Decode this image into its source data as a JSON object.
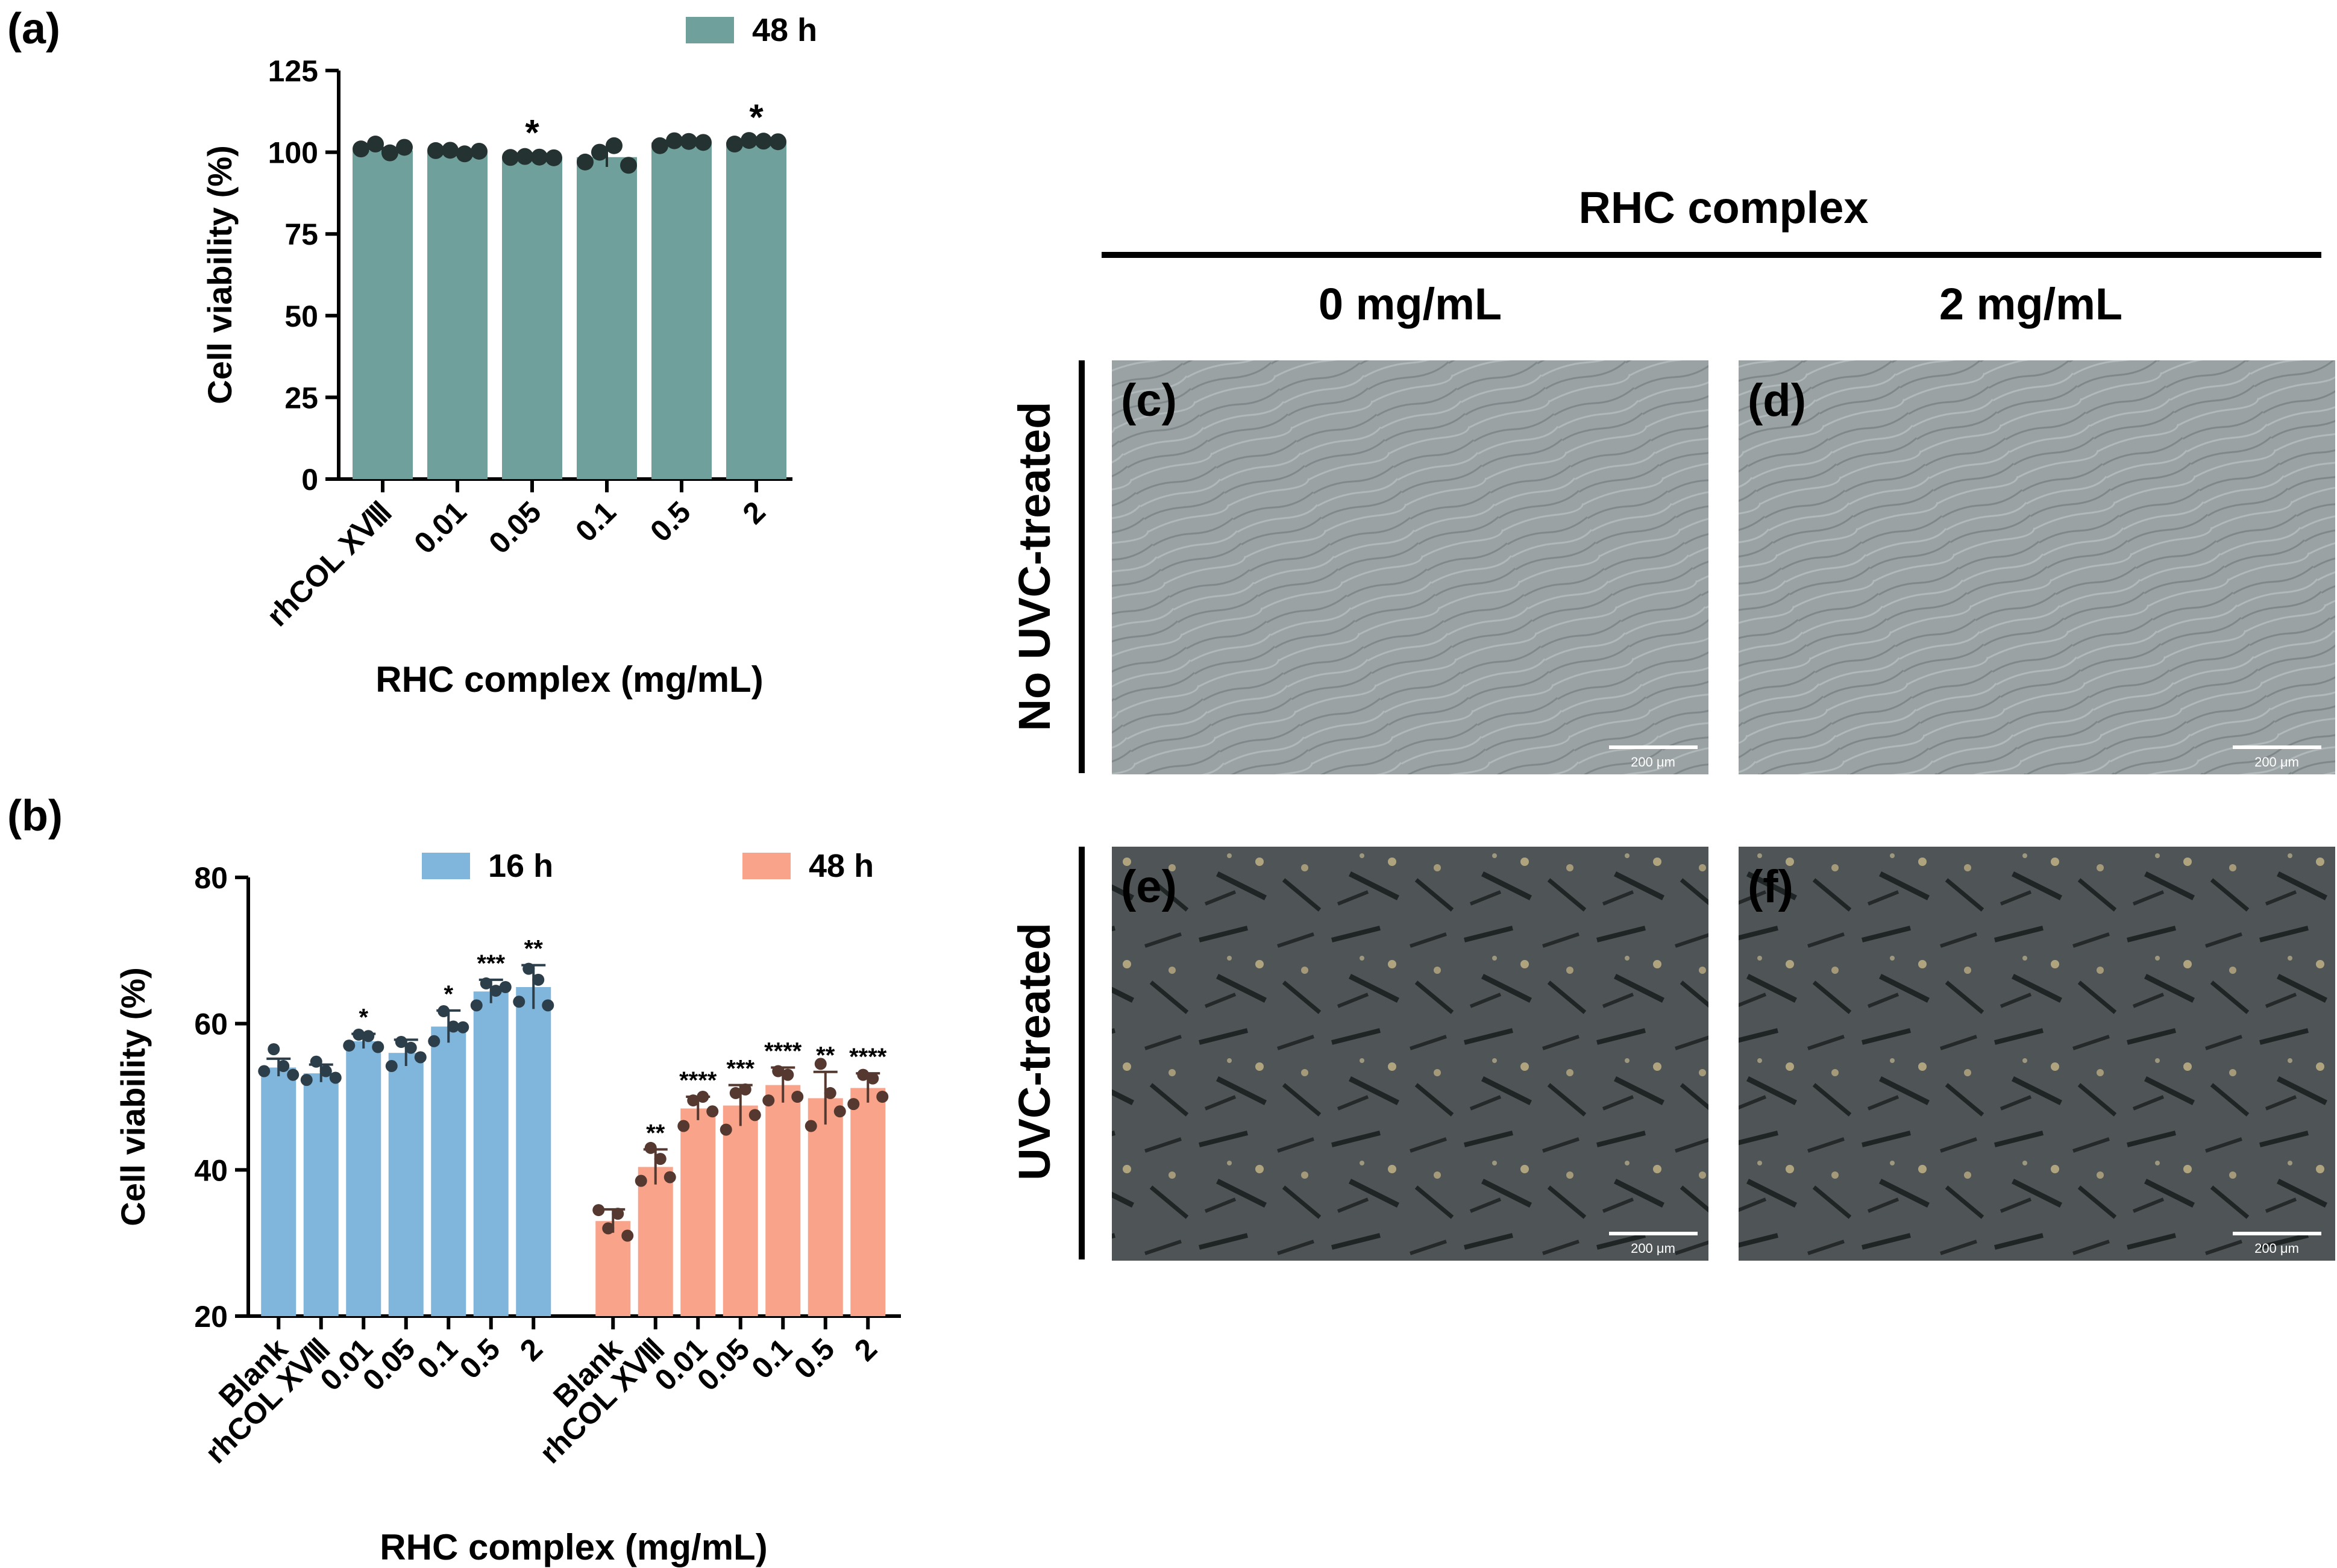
{
  "panels": {
    "a": "(a)",
    "b": "(b)",
    "c": "(c)",
    "d": "(d)",
    "e": "(e)",
    "f": "(f)"
  },
  "micrographs": {
    "header": "RHC complex",
    "col_labels": [
      "0 mg/mL",
      "2 mg/mL"
    ],
    "row_labels": [
      "No UVC-treated",
      "UVC-treated"
    ],
    "scale_bar": "200 μm",
    "colors": {
      "no_uvc_bg": "#9aa2a4",
      "uvc_bg": "#4f5556"
    }
  },
  "chart_data": [
    {
      "type": "bar",
      "panel": "a",
      "categories": [
        "rhCOL XⅧ",
        "0.01",
        "0.05",
        "0.1",
        "0.5",
        "2"
      ],
      "series": [
        {
          "name": "48 h",
          "color": "#6fa09c",
          "values": [
            100.5,
            100.2,
            98.5,
            98.5,
            103,
            103
          ],
          "errors": [
            0.8,
            0.4,
            0.4,
            3,
            0.6,
            0.6
          ],
          "points": [
            [
              101,
              102.5,
              99.8,
              101.5
            ],
            [
              100.5,
              100.6,
              99.5,
              100.3
            ],
            [
              98.4,
              98.7,
              98.5,
              98.3
            ],
            [
              97,
              100,
              102,
              96
            ],
            [
              102,
              103.5,
              103.3,
              103
            ],
            [
              102.5,
              103.6,
              103.4,
              103.2
            ]
          ],
          "significance": [
            "",
            "",
            "*",
            "",
            "",
            "*"
          ]
        }
      ],
      "xlabel": "RHC complex (mg/mL)",
      "ylabel": "Cell viability (%)",
      "ylim": [
        0,
        125
      ],
      "yticks": [
        "0",
        "25",
        "50",
        "75",
        "100",
        "125"
      ],
      "legend": "top"
    },
    {
      "type": "bar",
      "panel": "b",
      "categories": [
        "Blank",
        "rhCOL XⅧ",
        "0.01",
        "0.05",
        "0.1",
        "0.5",
        "2"
      ],
      "series": [
        {
          "name": "16 h",
          "color": "#80b6db",
          "values": [
            54,
            53.2,
            57.6,
            56,
            59.6,
            64.4,
            65
          ],
          "errors": [
            1.2,
            1.2,
            1,
            1.8,
            2.2,
            1.6,
            3
          ],
          "points": [
            [
              53.5,
              56.5,
              54.2,
              53
            ],
            [
              52.3,
              54.8,
              53.5,
              52.6
            ],
            [
              57,
              58.5,
              58.3,
              56.8
            ],
            [
              54.2,
              57.5,
              56.7,
              55.4
            ],
            [
              57.6,
              61.7,
              59.6,
              59.5
            ],
            [
              62.5,
              65.5,
              64.5,
              65
            ],
            [
              63,
              67.5,
              66,
              62.5
            ]
          ],
          "significance": [
            "",
            "",
            "*",
            "",
            "*",
            "***",
            "**"
          ]
        },
        {
          "name": "48 h",
          "color": "#f9a48a",
          "values": [
            33,
            40.4,
            48.4,
            48.8,
            51.6,
            49.8,
            51.2
          ],
          "errors": [
            1.6,
            2.4,
            1.6,
            2.8,
            2.4,
            3.6,
            2
          ],
          "points": [
            [
              34.5,
              32,
              34,
              31
            ],
            [
              38.5,
              43,
              41.5,
              39
            ],
            [
              46,
              49.5,
              50,
              48
            ],
            [
              45.5,
              50.5,
              51,
              47.5
            ],
            [
              49.5,
              53.5,
              53,
              50
            ],
            [
              46,
              54.5,
              50.5,
              48
            ],
            [
              49,
              53,
              52.5,
              50
            ]
          ],
          "significance": [
            "",
            "**",
            "****",
            "***",
            "****",
            "**",
            "****"
          ]
        }
      ],
      "xlabel": "RHC complex (mg/mL)",
      "ylabel": "Cell viability (%)",
      "ylim": [
        20,
        80
      ],
      "yticks": [
        "20",
        "40",
        "60",
        "80"
      ],
      "legend": "top"
    }
  ]
}
